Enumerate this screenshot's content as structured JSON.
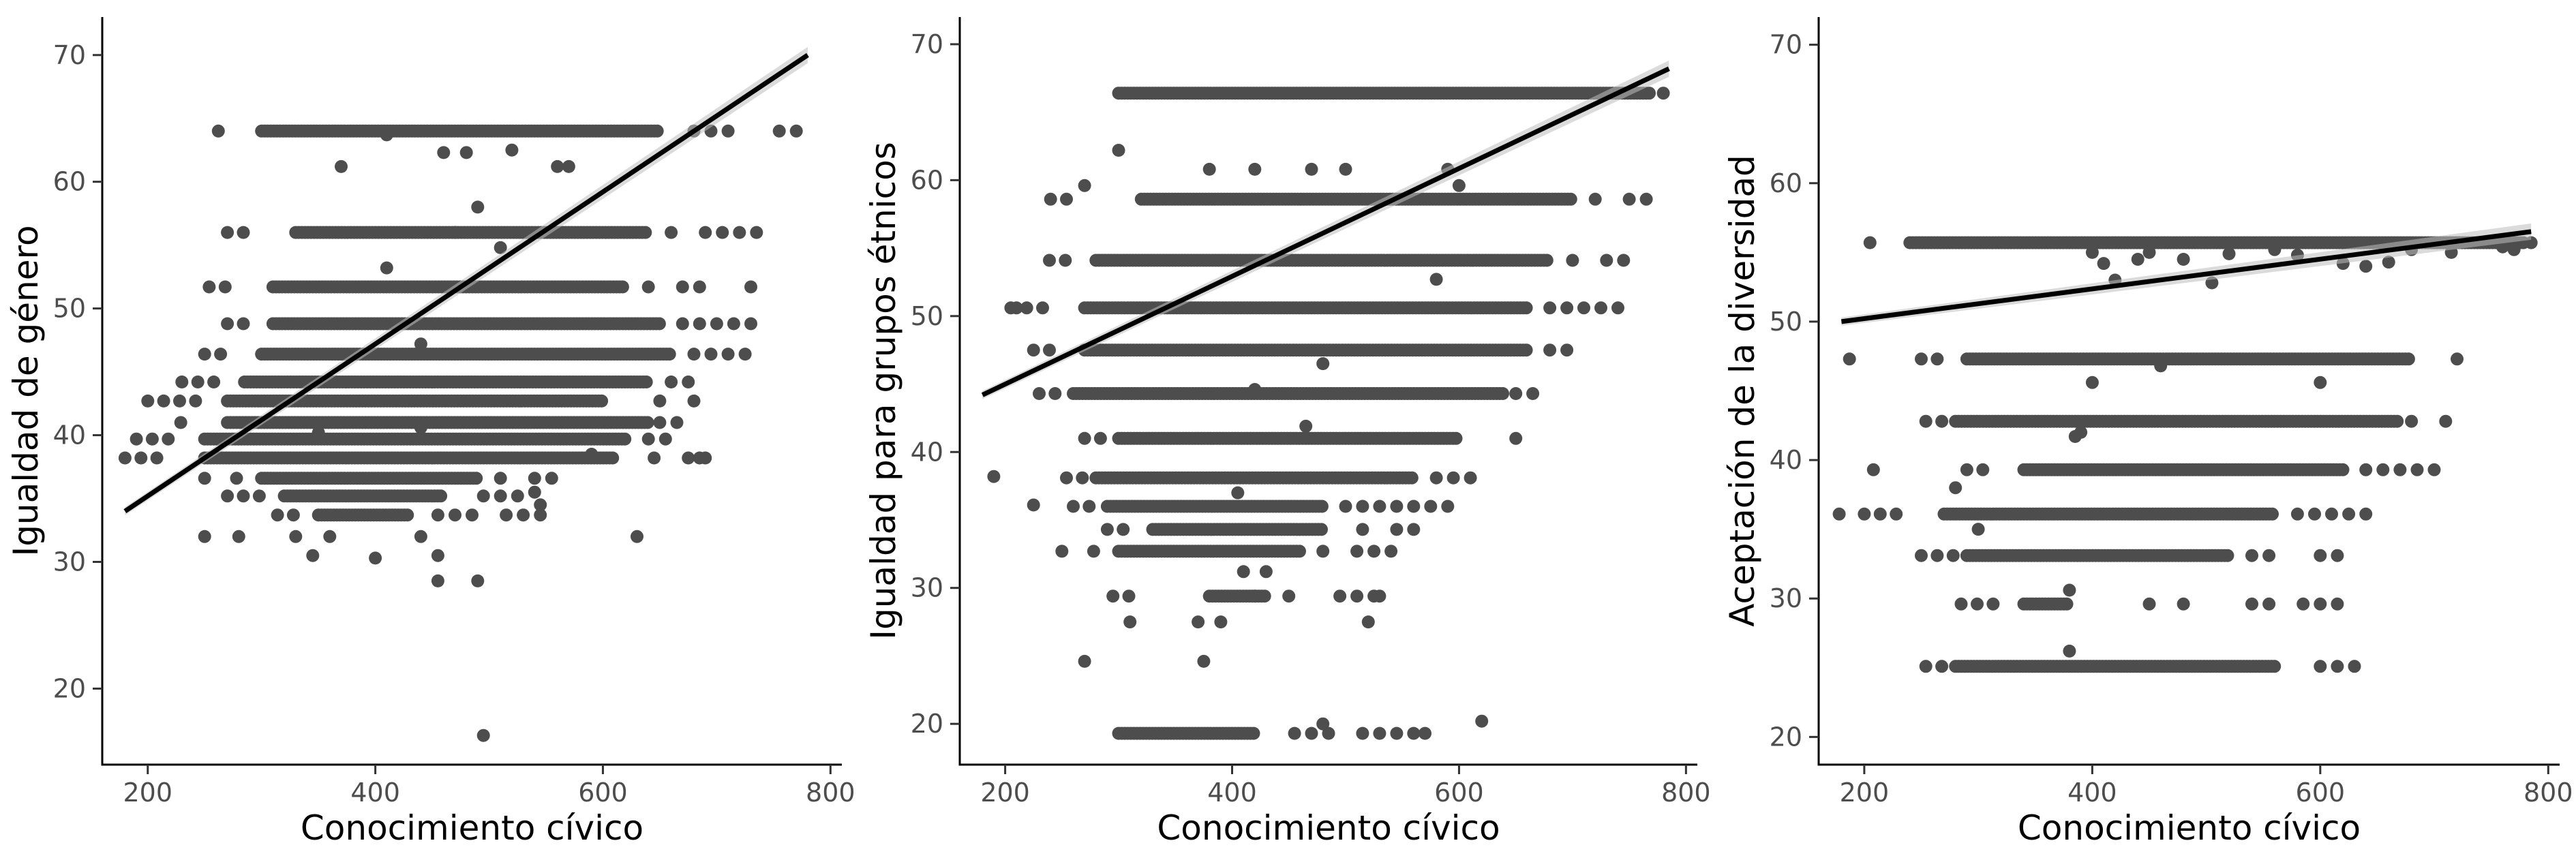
{
  "chart_data": [
    {
      "type": "scatter",
      "xlabel": "Conocimiento cívico",
      "ylabel": "Igualdad de género",
      "xlim": [
        160,
        810
      ],
      "ylim": [
        14,
        73
      ],
      "xticks": [
        200,
        400,
        600,
        800
      ],
      "yticks": [
        20,
        30,
        40,
        50,
        60,
        70
      ],
      "grid": false,
      "point_color": "#4d4d4d",
      "line_color": "#000000",
      "trend": {
        "x": [
          180,
          780
        ],
        "y": [
          34.0,
          70.0
        ]
      },
      "rows": [
        {
          "y": 64.0,
          "xs": [
            220,
            270
          ],
          "dense": [
            300,
            650
          ],
          "xe": [
            680,
            775
          ]
        },
        {
          "y": 56.0,
          "xs": [
            270,
            300
          ],
          "dense": [
            330,
            640
          ],
          "xe": [
            660,
            760
          ]
        },
        {
          "y": 51.7,
          "xs": [
            240,
            270
          ],
          "dense": [
            310,
            620
          ],
          "xe": [
            640,
            735
          ]
        },
        {
          "y": 48.8,
          "xs": [
            270,
            290
          ],
          "dense": [
            310,
            650
          ],
          "xe": [
            670,
            750
          ]
        },
        {
          "y": 46.4,
          "xs": [
            250,
            270
          ],
          "dense": [
            300,
            660
          ],
          "xe": [
            680,
            735
          ]
        },
        {
          "y": 44.2,
          "xs": [
            230,
            260
          ],
          "dense": [
            285,
            640
          ],
          "xe": [
            660,
            700
          ]
        },
        {
          "y": 42.7,
          "xs": [
            200,
            250
          ],
          "dense": [
            270,
            600
          ],
          "xe": [
            620,
            680
          ]
        },
        {
          "y": 41.0,
          "xs": [
            215,
            240
          ],
          "dense": [
            270,
            640
          ],
          "xe": [
            650,
            670
          ]
        },
        {
          "y": 39.7,
          "xs": [
            190,
            230
          ],
          "dense": [
            250,
            620
          ],
          "xe": [
            640,
            660
          ]
        },
        {
          "y": 38.2,
          "xs": [
            180,
            230
          ],
          "dense": [
            250,
            610
          ],
          "xe": [
            630,
            690
          ]
        },
        {
          "y": 36.6,
          "xs": [
            250,
            280
          ],
          "dense": [
            300,
            490
          ],
          "xe": [
            510,
            560
          ]
        },
        {
          "y": 35.2,
          "xs": [
            270,
            300
          ],
          "dense": [
            320,
            460
          ],
          "xe": [
            480,
            550
          ]
        },
        {
          "y": 33.7,
          "xs": [
            300,
            340
          ],
          "dense": [
            350,
            430
          ],
          "xe": [
            440,
            550
          ]
        }
      ],
      "scatter": [
        [
          250,
          32.0
        ],
        [
          280,
          32.0
        ],
        [
          330,
          32.0
        ],
        [
          345,
          30.5
        ],
        [
          360,
          32.0
        ],
        [
          400,
          30.3
        ],
        [
          440,
          32.0
        ],
        [
          455,
          28.5
        ],
        [
          455,
          30.5
        ],
        [
          490,
          28.5
        ],
        [
          630,
          32.0
        ],
        [
          495,
          16.3
        ],
        [
          370,
          61.2
        ],
        [
          410,
          63.7
        ],
        [
          460,
          62.3
        ],
        [
          480,
          62.3
        ],
        [
          520,
          62.5
        ],
        [
          560,
          61.2
        ],
        [
          570,
          61.2
        ],
        [
          490,
          58.0
        ],
        [
          470,
          56.0
        ],
        [
          510,
          54.8
        ],
        [
          410,
          53.2
        ],
        [
          350,
          40.2
        ],
        [
          440,
          47.2
        ],
        [
          540,
          35.5
        ],
        [
          545,
          34.5
        ],
        [
          590,
          38.5
        ],
        [
          685,
          38.2
        ],
        [
          440,
          40.6
        ]
      ]
    },
    {
      "type": "scatter",
      "xlabel": "Conocimiento cívico",
      "ylabel": "Igualdad para grupos étnicos",
      "xlim": [
        160,
        810
      ],
      "ylim": [
        17,
        72
      ],
      "xticks": [
        200,
        400,
        600,
        800
      ],
      "yticks": [
        20,
        30,
        40,
        50,
        60,
        70
      ],
      "grid": false,
      "point_color": "#4d4d4d",
      "line_color": "#000000",
      "trend": {
        "x": [
          180,
          785
        ],
        "y": [
          44.2,
          68.2
        ]
      },
      "rows": [
        {
          "y": 66.4,
          "xs": [
            240,
            270
          ],
          "dense": [
            300,
            770
          ],
          "xe": [
            780,
            785
          ]
        },
        {
          "y": 58.6,
          "xs": [
            240,
            270
          ],
          "dense": [
            320,
            700
          ],
          "xe": [
            720,
            770
          ]
        },
        {
          "y": 54.1,
          "xs": [
            225,
            260
          ],
          "dense": [
            280,
            680
          ],
          "xe": [
            700,
            750
          ]
        },
        {
          "y": 50.6,
          "xs": [
            205,
            240
          ],
          "dense": [
            270,
            660
          ],
          "xe": [
            680,
            740
          ]
        },
        {
          "y": 47.5,
          "xs": [
            225,
            250
          ],
          "dense": [
            270,
            660
          ],
          "xe": [
            680,
            700
          ]
        },
        {
          "y": 44.3,
          "xs": [
            230,
            250
          ],
          "dense": [
            260,
            640
          ],
          "xe": [
            650,
            700
          ]
        },
        {
          "y": 41.0,
          "xs": [
            270,
            290
          ],
          "dense": [
            300,
            600
          ],
          "xe": [
            620,
            670
          ]
        },
        {
          "y": 38.1,
          "xs": [
            240,
            270
          ],
          "dense": [
            280,
            560
          ],
          "xe": [
            580,
            660
          ]
        },
        {
          "y": 36.0,
          "xs": [
            260,
            280
          ],
          "dense": [
            290,
            480
          ],
          "xe": [
            500,
            610
          ]
        },
        {
          "y": 34.3,
          "xs": [
            290,
            310
          ],
          "dense": [
            330,
            480
          ],
          "xe": [
            500,
            570
          ]
        },
        {
          "y": 32.7,
          "xs": [
            250,
            280
          ],
          "dense": [
            300,
            460
          ],
          "xe": [
            480,
            560
          ]
        },
        {
          "y": 29.4,
          "xs": [
            295,
            310
          ],
          "dense": [
            380,
            430
          ],
          "xe": [
            480,
            540
          ]
        },
        {
          "y": 19.3,
          "xs": [
            290,
            300
          ],
          "dense": [
            300,
            420
          ],
          "xe": [
            440,
            560
          ]
        }
      ],
      "scatter": [
        [
          190,
          38.2
        ],
        [
          225,
          36.1
        ],
        [
          270,
          24.6
        ],
        [
          310,
          27.5
        ],
        [
          370,
          27.5
        ],
        [
          375,
          24.6
        ],
        [
          390,
          27.5
        ],
        [
          420,
          29.4
        ],
        [
          410,
          31.2
        ],
        [
          430,
          31.2
        ],
        [
          450,
          29.4
        ],
        [
          520,
          27.5
        ],
        [
          530,
          29.4
        ],
        [
          480,
          20.0
        ],
        [
          620,
          20.2
        ],
        [
          570,
          19.3
        ],
        [
          270,
          59.6
        ],
        [
          380,
          60.8
        ],
        [
          420,
          60.8
        ],
        [
          470,
          60.8
        ],
        [
          500,
          60.8
        ],
        [
          590,
          60.8
        ],
        [
          600,
          59.6
        ],
        [
          580,
          52.7
        ],
        [
          480,
          46.5
        ],
        [
          420,
          44.6
        ],
        [
          465,
          41.9
        ],
        [
          405,
          37.0
        ],
        [
          300,
          62.2
        ],
        [
          210,
          50.6
        ]
      ]
    },
    {
      "type": "scatter",
      "xlabel": "Conocimiento cívico",
      "ylabel": "Aceptación de la diversidad",
      "xlim": [
        160,
        810
      ],
      "ylim": [
        18,
        72
      ],
      "xticks": [
        200,
        400,
        600,
        800
      ],
      "yticks": [
        20,
        30,
        40,
        50,
        60,
        70
      ],
      "grid": false,
      "point_color": "#4d4d4d",
      "line_color": "#000000",
      "trend": {
        "x": [
          180,
          785
        ],
        "y": [
          50.0,
          56.5
        ]
      },
      "rows": [
        {
          "y": 55.7,
          "xs": [
            200,
            230
          ],
          "dense": [
            240,
            780
          ],
          "xe": [
            785,
            785
          ]
        },
        {
          "y": 47.3,
          "xs": [
            250,
            270
          ],
          "dense": [
            290,
            680
          ],
          "xe": [
            720,
            725
          ]
        },
        {
          "y": 42.8,
          "xs": [
            240,
            270
          ],
          "dense": [
            280,
            670
          ],
          "xe": [
            680,
            710
          ]
        },
        {
          "y": 39.3,
          "xs": [
            290,
            310
          ],
          "dense": [
            340,
            620
          ],
          "xe": [
            640,
            720
          ]
        },
        {
          "y": 36.1,
          "xs": [
            200,
            240
          ],
          "dense": [
            270,
            560
          ],
          "xe": [
            580,
            640
          ]
        },
        {
          "y": 33.1,
          "xs": [
            250,
            280
          ],
          "dense": [
            290,
            520
          ],
          "xe": [
            540,
            620
          ]
        },
        {
          "y": 29.6,
          "xs": [
            285,
            320
          ],
          "dense": [
            340,
            380
          ],
          "xe": [
            420,
            630
          ]
        },
        {
          "y": 25.1,
          "xs": [
            240,
            270
          ],
          "dense": [
            280,
            560
          ],
          "xe": [
            600,
            630
          ]
        }
      ],
      "scatter": [
        [
          178,
          36.1
        ],
        [
          187,
          47.3
        ],
        [
          208,
          39.3
        ],
        [
          205,
          55.7
        ],
        [
          280,
          38.0
        ],
        [
          300,
          35.0
        ],
        [
          380,
          26.2
        ],
        [
          380,
          30.6
        ],
        [
          385,
          41.7
        ],
        [
          390,
          42.0
        ],
        [
          400,
          45.6
        ],
        [
          400,
          55.0
        ],
        [
          410,
          54.2
        ],
        [
          420,
          53.0
        ],
        [
          440,
          54.5
        ],
        [
          450,
          55.0
        ],
        [
          460,
          46.8
        ],
        [
          480,
          54.5
        ],
        [
          505,
          52.8
        ],
        [
          520,
          54.9
        ],
        [
          560,
          55.2
        ],
        [
          580,
          54.8
        ],
        [
          600,
          45.6
        ],
        [
          620,
          54.2
        ],
        [
          640,
          54.0
        ],
        [
          660,
          54.3
        ],
        [
          680,
          55.2
        ],
        [
          715,
          55.0
        ],
        [
          760,
          55.4
        ],
        [
          770,
          55.2
        ]
      ]
    }
  ]
}
